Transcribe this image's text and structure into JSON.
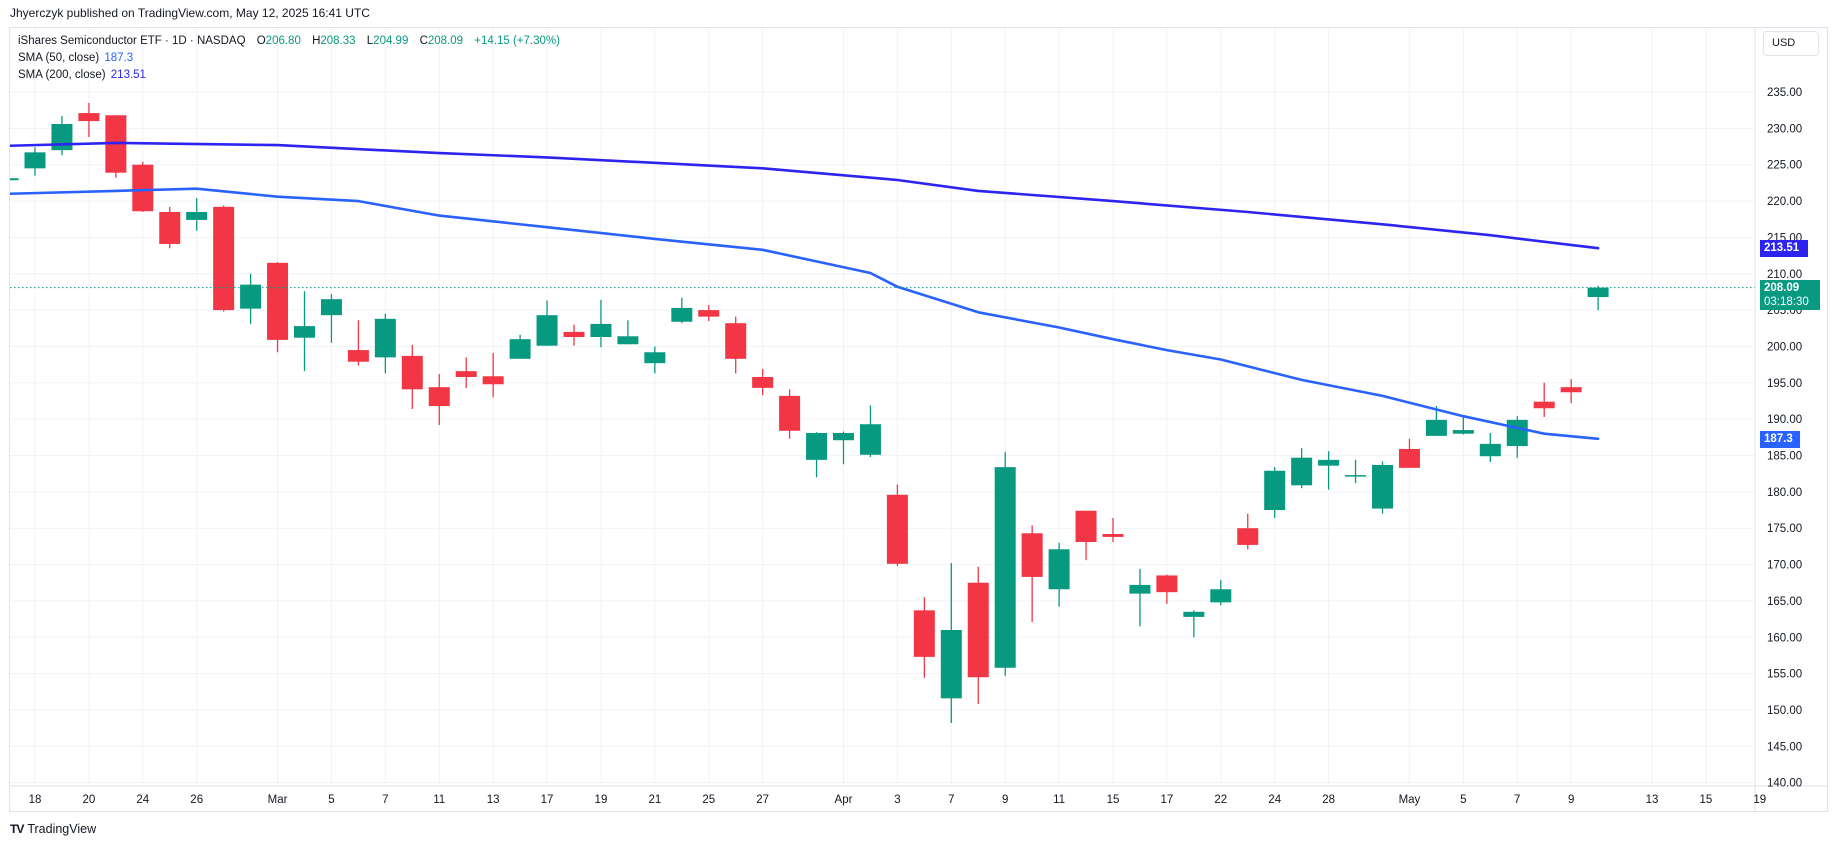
{
  "header": {
    "publisher_line": "Jhyerczyk published on TradingView.com, May 12, 2025 16:41 UTC"
  },
  "legend": {
    "symbol": "iShares Semiconductor ETF · 1D · NASDAQ",
    "open_label": "O",
    "open": "206.80",
    "high_label": "H",
    "high": "208.33",
    "low_label": "L",
    "low": "204.99",
    "close_label": "C",
    "close": "208.09",
    "change": "+14.15 (+7.30%)",
    "sma50_label": "SMA (50, close)",
    "sma50_value": "187.3",
    "sma200_label": "SMA (200, close)",
    "sma200_value": "213.51"
  },
  "price_axis": {
    "currency_button": "USD",
    "sma200_tag": "213.51",
    "last_price_tag": "208.09",
    "countdown": "03:18:30",
    "sma50_tag": "187.3"
  },
  "footer": {
    "logo_mark": "TV",
    "logo_text": "TradingView"
  },
  "colors": {
    "up": "#089981",
    "down": "#f23645",
    "sma50": "#2962ff",
    "sma200": "#2d24f2",
    "grid": "#f0f3fa",
    "border": "#e0e3eb",
    "text": "#131722"
  },
  "chart_data": {
    "type": "candlestick",
    "title": "iShares Semiconductor ETF · 1D · NASDAQ",
    "xlabel": "",
    "ylabel": "USD",
    "ylim": [
      140,
      235
    ],
    "y_ticks": [
      "235.00",
      "230.00",
      "225.00",
      "220.00",
      "215.00",
      "210.00",
      "205.00",
      "200.00",
      "195.00",
      "190.00",
      "185.00",
      "180.00",
      "175.00",
      "170.00",
      "165.00",
      "160.00",
      "155.00",
      "150.00",
      "145.00",
      "140.00"
    ],
    "x_tick_labels": [
      {
        "label": "18",
        "idx": 0
      },
      {
        "label": "20",
        "idx": 2
      },
      {
        "label": "24",
        "idx": 4
      },
      {
        "label": "26",
        "idx": 6
      },
      {
        "label": "Mar",
        "idx": 9
      },
      {
        "label": "5",
        "idx": 11
      },
      {
        "label": "7",
        "idx": 13
      },
      {
        "label": "11",
        "idx": 15
      },
      {
        "label": "13",
        "idx": 17
      },
      {
        "label": "17",
        "idx": 19
      },
      {
        "label": "19",
        "idx": 21
      },
      {
        "label": "21",
        "idx": 23
      },
      {
        "label": "25",
        "idx": 25
      },
      {
        "label": "27",
        "idx": 27
      },
      {
        "label": "Apr",
        "idx": 30
      },
      {
        "label": "3",
        "idx": 32
      },
      {
        "label": "7",
        "idx": 34
      },
      {
        "label": "9",
        "idx": 36
      },
      {
        "label": "11",
        "idx": 38
      },
      {
        "label": "15",
        "idx": 40
      },
      {
        "label": "17",
        "idx": 42
      },
      {
        "label": "22",
        "idx": 44
      },
      {
        "label": "24",
        "idx": 46
      },
      {
        "label": "28",
        "idx": 48
      },
      {
        "label": "May",
        "idx": 51
      },
      {
        "label": "5",
        "idx": 53
      },
      {
        "label": "7",
        "idx": 55
      },
      {
        "label": "9",
        "idx": 57
      },
      {
        "label": "13",
        "idx": 60
      },
      {
        "label": "15",
        "idx": 62
      },
      {
        "label": "19",
        "idx": 64
      }
    ],
    "grid": true,
    "last_price": 208.09,
    "partial_first_candle": {
      "date": "Feb 14",
      "o": 222.9,
      "h": 223.0,
      "l": 222.8,
      "c": 223.0
    },
    "candles": [
      {
        "date": "Feb 18",
        "o": 224.5,
        "h": 227.4,
        "l": 223.5,
        "c": 226.7
      },
      {
        "date": "Feb 19",
        "o": 227.0,
        "h": 231.7,
        "l": 226.3,
        "c": 230.6
      },
      {
        "date": "Feb 20",
        "o": 232.1,
        "h": 233.5,
        "l": 228.8,
        "c": 231.0
      },
      {
        "date": "Feb 21",
        "o": 231.8,
        "h": 231.8,
        "l": 223.2,
        "c": 223.9
      },
      {
        "date": "Feb 24",
        "o": 225.0,
        "h": 225.4,
        "l": 218.5,
        "c": 218.6
      },
      {
        "date": "Feb 25",
        "o": 218.5,
        "h": 219.2,
        "l": 213.5,
        "c": 214.1
      },
      {
        "date": "Feb 26",
        "o": 217.4,
        "h": 220.4,
        "l": 215.9,
        "c": 218.5
      },
      {
        "date": "Feb 27",
        "o": 219.2,
        "h": 219.4,
        "l": 204.8,
        "c": 205.0
      },
      {
        "date": "Feb 28",
        "o": 205.2,
        "h": 210.0,
        "l": 203.1,
        "c": 208.5
      },
      {
        "date": "Mar 3",
        "o": 211.5,
        "h": 211.6,
        "l": 199.2,
        "c": 200.9
      },
      {
        "date": "Mar 4",
        "o": 201.2,
        "h": 207.6,
        "l": 196.6,
        "c": 202.8
      },
      {
        "date": "Mar 5",
        "o": 204.3,
        "h": 207.2,
        "l": 200.5,
        "c": 206.5
      },
      {
        "date": "Mar 6",
        "o": 199.5,
        "h": 203.6,
        "l": 197.4,
        "c": 197.9
      },
      {
        "date": "Mar 7",
        "o": 198.5,
        "h": 204.5,
        "l": 196.3,
        "c": 203.8
      },
      {
        "date": "Mar 10",
        "o": 198.7,
        "h": 200.2,
        "l": 191.4,
        "c": 194.1
      },
      {
        "date": "Mar 11",
        "o": 194.4,
        "h": 196.2,
        "l": 189.2,
        "c": 191.8
      },
      {
        "date": "Mar 12",
        "o": 196.6,
        "h": 198.5,
        "l": 194.3,
        "c": 195.8
      },
      {
        "date": "Mar 13",
        "o": 195.9,
        "h": 199.1,
        "l": 193.0,
        "c": 194.8
      },
      {
        "date": "Mar 14",
        "o": 198.3,
        "h": 201.6,
        "l": 198.3,
        "c": 201.0
      },
      {
        "date": "Mar 17",
        "o": 200.1,
        "h": 206.3,
        "l": 200.1,
        "c": 204.3
      },
      {
        "date": "Mar 18",
        "o": 202.0,
        "h": 203.0,
        "l": 200.1,
        "c": 201.3
      },
      {
        "date": "Mar 19",
        "o": 201.3,
        "h": 206.4,
        "l": 199.9,
        "c": 203.1
      },
      {
        "date": "Mar 20",
        "o": 200.3,
        "h": 203.6,
        "l": 200.3,
        "c": 201.4
      },
      {
        "date": "Mar 21",
        "o": 197.7,
        "h": 200.0,
        "l": 196.3,
        "c": 199.2
      },
      {
        "date": "Mar 24",
        "o": 203.4,
        "h": 206.7,
        "l": 203.2,
        "c": 205.3
      },
      {
        "date": "Mar 25",
        "o": 205.0,
        "h": 205.7,
        "l": 203.5,
        "c": 204.1
      },
      {
        "date": "Mar 26",
        "o": 203.2,
        "h": 204.1,
        "l": 196.3,
        "c": 198.3
      },
      {
        "date": "Mar 27",
        "o": 195.8,
        "h": 196.9,
        "l": 193.3,
        "c": 194.3
      },
      {
        "date": "Mar 28",
        "o": 193.2,
        "h": 194.1,
        "l": 187.3,
        "c": 188.4
      },
      {
        "date": "Mar 31",
        "o": 184.4,
        "h": 188.2,
        "l": 182.0,
        "c": 188.1
      },
      {
        "date": "Apr 1",
        "o": 187.1,
        "h": 188.3,
        "l": 183.8,
        "c": 188.1
      },
      {
        "date": "Apr 2",
        "o": 185.1,
        "h": 191.9,
        "l": 184.8,
        "c": 189.3
      },
      {
        "date": "Apr 3",
        "o": 179.6,
        "h": 181.0,
        "l": 169.8,
        "c": 170.1
      },
      {
        "date": "Apr 4",
        "o": 163.7,
        "h": 165.5,
        "l": 154.4,
        "c": 157.3
      },
      {
        "date": "Apr 7",
        "o": 151.6,
        "h": 170.2,
        "l": 148.2,
        "c": 161.0
      },
      {
        "date": "Apr 8",
        "o": 167.5,
        "h": 169.7,
        "l": 150.8,
        "c": 154.5
      },
      {
        "date": "Apr 9",
        "o": 155.8,
        "h": 185.5,
        "l": 154.7,
        "c": 183.4
      },
      {
        "date": "Apr 10",
        "o": 174.3,
        "h": 175.4,
        "l": 162.1,
        "c": 168.3
      },
      {
        "date": "Apr 11",
        "o": 166.6,
        "h": 173.0,
        "l": 164.2,
        "c": 172.1
      },
      {
        "date": "Apr 14",
        "o": 177.4,
        "h": 177.4,
        "l": 170.6,
        "c": 173.1
      },
      {
        "date": "Apr 15",
        "o": 174.2,
        "h": 176.4,
        "l": 173.1,
        "c": 173.8
      },
      {
        "date": "Apr 16",
        "o": 166.0,
        "h": 169.4,
        "l": 161.5,
        "c": 167.2
      },
      {
        "date": "Apr 17",
        "o": 168.5,
        "h": 168.6,
        "l": 164.6,
        "c": 166.2
      },
      {
        "date": "Apr 21",
        "o": 162.8,
        "h": 163.7,
        "l": 160.0,
        "c": 163.5
      },
      {
        "date": "Apr 22",
        "o": 164.8,
        "h": 167.9,
        "l": 164.4,
        "c": 166.6
      },
      {
        "date": "Apr 23",
        "o": 175.0,
        "h": 177.0,
        "l": 172.1,
        "c": 172.7
      },
      {
        "date": "Apr 24",
        "o": 177.5,
        "h": 183.4,
        "l": 176.4,
        "c": 182.9
      },
      {
        "date": "Apr 25",
        "o": 180.9,
        "h": 186.0,
        "l": 180.5,
        "c": 184.7
      },
      {
        "date": "Apr 28",
        "o": 183.6,
        "h": 185.6,
        "l": 180.3,
        "c": 184.4
      },
      {
        "date": "Apr 29",
        "o": 182.1,
        "h": 184.4,
        "l": 181.2,
        "c": 182.3
      },
      {
        "date": "Apr 30",
        "o": 177.7,
        "h": 184.2,
        "l": 177.0,
        "c": 183.7
      },
      {
        "date": "May 1",
        "o": 185.9,
        "h": 187.3,
        "l": 183.3,
        "c": 183.3
      },
      {
        "date": "May 2",
        "o": 187.7,
        "h": 191.8,
        "l": 187.7,
        "c": 189.9
      },
      {
        "date": "May 5",
        "o": 188.0,
        "h": 190.3,
        "l": 187.9,
        "c": 188.5
      },
      {
        "date": "May 6",
        "o": 184.9,
        "h": 188.1,
        "l": 184.1,
        "c": 186.6
      },
      {
        "date": "May 7",
        "o": 186.3,
        "h": 190.4,
        "l": 184.7,
        "c": 189.9
      },
      {
        "date": "May 8",
        "o": 192.4,
        "h": 195.0,
        "l": 190.3,
        "c": 191.5
      },
      {
        "date": "May 9",
        "o": 194.4,
        "h": 195.5,
        "l": 192.2,
        "c": 193.7
      },
      {
        "date": "May 12",
        "o": 206.8,
        "h": 208.33,
        "l": 204.99,
        "c": 208.09
      }
    ],
    "series": [
      {
        "name": "SMA (200, close)",
        "color": "#2d24f2",
        "points": [
          [
            -1,
            227.6
          ],
          [
            3,
            228.0
          ],
          [
            9,
            227.7
          ],
          [
            15,
            226.6
          ],
          [
            19,
            226.0
          ],
          [
            27,
            224.5
          ],
          [
            32,
            222.9
          ],
          [
            35,
            221.4
          ],
          [
            40,
            220.0
          ],
          [
            45,
            218.5
          ],
          [
            50,
            216.8
          ],
          [
            54,
            215.3
          ],
          [
            58,
            213.51
          ]
        ]
      },
      {
        "name": "SMA (50, close)",
        "color": "#2962ff",
        "points": [
          [
            -1,
            221.0
          ],
          [
            3,
            221.4
          ],
          [
            6,
            221.7
          ],
          [
            9,
            220.6
          ],
          [
            12,
            220.0
          ],
          [
            15,
            218.0
          ],
          [
            19,
            216.4
          ],
          [
            23,
            214.8
          ],
          [
            27,
            213.3
          ],
          [
            31,
            210.1
          ],
          [
            32,
            208.2
          ],
          [
            35,
            204.7
          ],
          [
            38,
            202.6
          ],
          [
            40,
            201.0
          ],
          [
            42,
            199.5
          ],
          [
            44,
            198.2
          ],
          [
            47,
            195.4
          ],
          [
            50,
            193.2
          ],
          [
            53,
            190.4
          ],
          [
            56,
            188.0
          ],
          [
            58,
            187.3
          ]
        ]
      }
    ]
  }
}
